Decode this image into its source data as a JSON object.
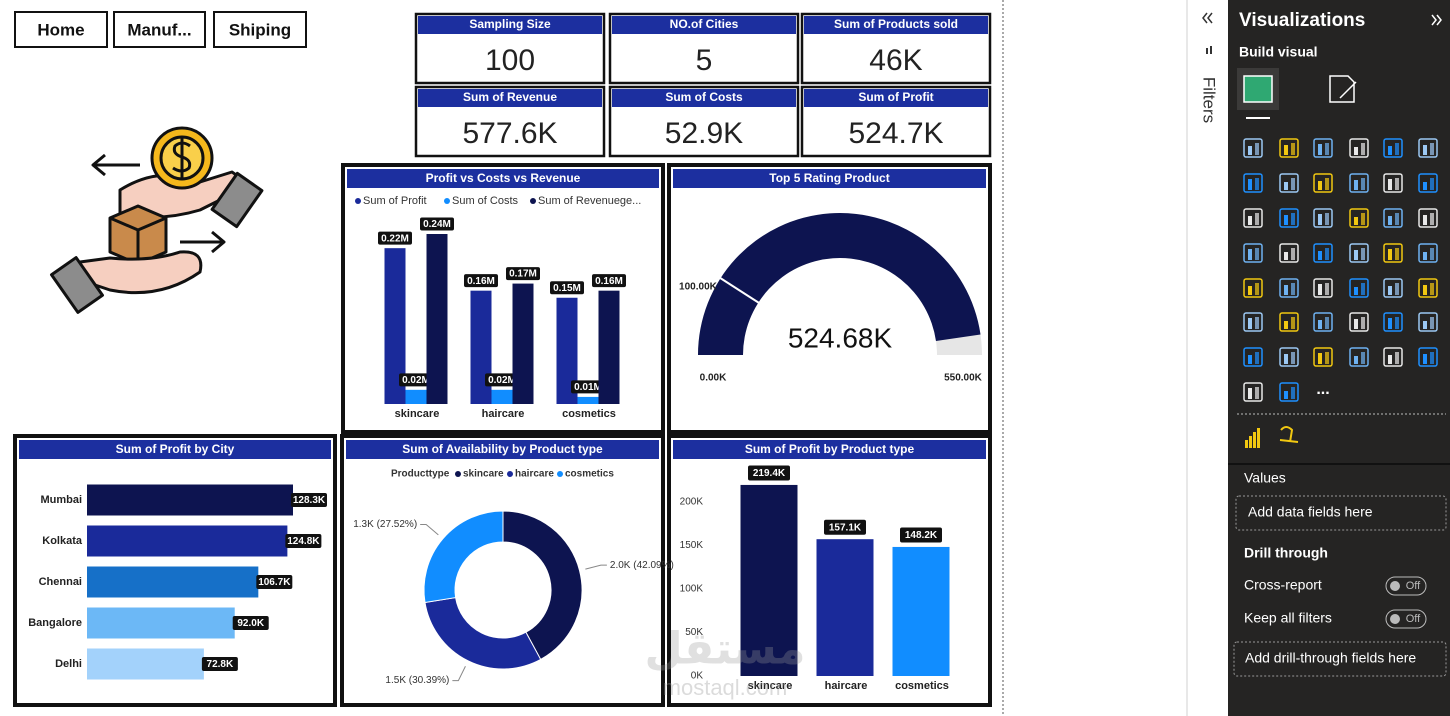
{
  "nav": [
    "Home",
    "Manuf...",
    "Shiping"
  ],
  "kpis": [
    {
      "title": "Sampling Size",
      "value": "100"
    },
    {
      "title": "NO.of Cities",
      "value": "5"
    },
    {
      "title": "Sum of Products sold",
      "value": "46K"
    },
    {
      "title": "Sum of Revenue",
      "value": "577.6K"
    },
    {
      "title": "Sum of Costs",
      "value": "52.9K"
    },
    {
      "title": "Sum of Profit",
      "value": "524.7K"
    }
  ],
  "chart_data": [
    {
      "type": "grouped-bar",
      "title": "Profit vs Costs vs Revenue",
      "categories": [
        "skincare",
        "haircare",
        "cosmetics"
      ],
      "series": [
        {
          "name": "Sum of Profit",
          "color": "#1a2a9a",
          "values": [
            0.22,
            0.16,
            0.15
          ],
          "value_labels": [
            "0.22M",
            "0.16M",
            "0.15M"
          ]
        },
        {
          "name": "Sum of Costs",
          "color": "#118dff",
          "values": [
            0.02,
            0.02,
            0.01
          ],
          "value_labels": [
            "0.02M",
            "0.02M",
            "0.01M"
          ]
        },
        {
          "name": "Sum of Revenuege...",
          "color": "#0d1450",
          "values": [
            0.24,
            0.17,
            0.16
          ],
          "value_labels": [
            "0.24M",
            "0.17M",
            "0.16M"
          ]
        }
      ],
      "legend": "top"
    },
    {
      "type": "gauge",
      "title": "Top 5 Rating Product",
      "value": 524.68,
      "value_label": "524.68K",
      "min": {
        "value": 0,
        "label": "0.00K"
      },
      "max": {
        "value": 550,
        "label": "550.00K"
      },
      "target": {
        "value": 100,
        "label": "100.00K"
      },
      "color": "#0d1450",
      "track_color": "#e6e6e6"
    },
    {
      "type": "hbar",
      "title": "Sum of Profit by City",
      "categories": [
        "Mumbai",
        "Kolkata",
        "Chennai",
        "Bangalore",
        "Delhi"
      ],
      "values": [
        128.3,
        124.8,
        106.7,
        92.0,
        72.8
      ],
      "value_labels": [
        "128.3K",
        "124.8K",
        "106.7K",
        "92.0K",
        "72.8K"
      ],
      "colors": [
        "#0d1450",
        "#1a2a9a",
        "#1670c8",
        "#6cb8f6",
        "#a3d2fb"
      ]
    },
    {
      "type": "donut",
      "title": "Sum of Availability by Product type",
      "legend_title": "Producttype",
      "categories": [
        "skincare",
        "haircare",
        "cosmetics"
      ],
      "values": [
        42.09,
        30.39,
        27.52
      ],
      "value_labels": [
        "2.0K (42.09%)",
        "1.5K (30.39%)",
        "1.3K (27.52%)"
      ],
      "colors": [
        "#0d1450",
        "#1a2a9a",
        "#118dff"
      ]
    },
    {
      "type": "bar",
      "title": "Sum of Profit by Product type",
      "categories": [
        "skincare",
        "haircare",
        "cosmetics"
      ],
      "values": [
        219.4,
        157.1,
        148.2
      ],
      "value_labels": [
        "219.4K",
        "157.1K",
        "148.2K"
      ],
      "colors": [
        "#0d1450",
        "#1a2a9a",
        "#118dff"
      ],
      "ylim": [
        0,
        240
      ],
      "yticks": [
        {
          "value": 0,
          "label": "0K"
        },
        {
          "value": 50,
          "label": "50K"
        },
        {
          "value": 100,
          "label": "100K"
        },
        {
          "value": 150,
          "label": "150K"
        },
        {
          "value": 200,
          "label": "200K"
        }
      ]
    }
  ],
  "panel": {
    "filters": "Filters",
    "title": "Visualizations",
    "build": "Build visual",
    "more": "...",
    "values": "Values",
    "values_drop": "Add data fields here",
    "drill": "Drill through",
    "cross": "Cross-report",
    "cross_state": "Off",
    "keep": "Keep all filters",
    "keep_state": "Off",
    "drill_drop": "Add drill-through fields here"
  },
  "watermark": {
    "arabic": "مستقل",
    "latin": "mostaql.com"
  }
}
